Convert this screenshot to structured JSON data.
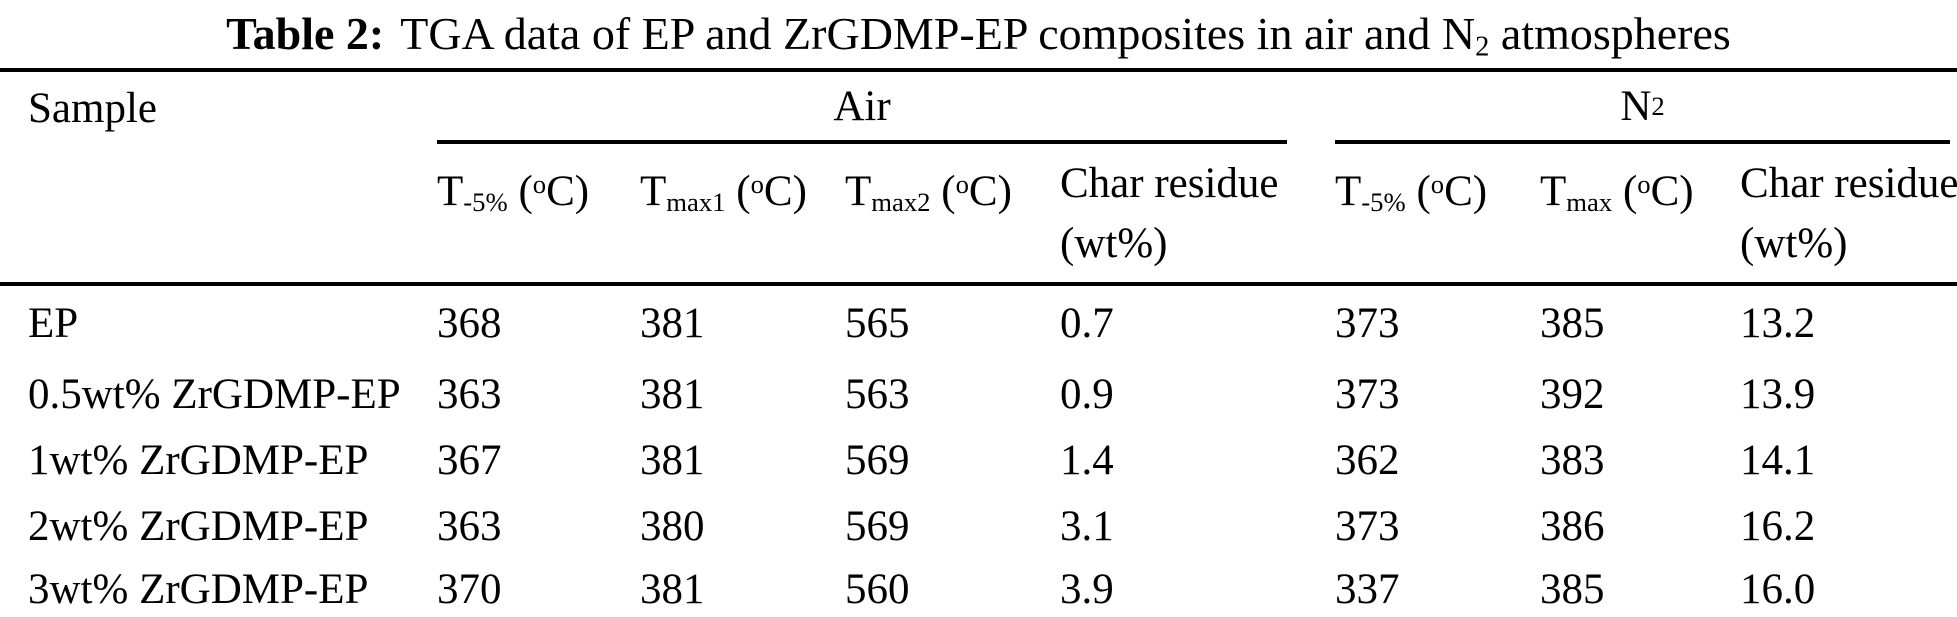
{
  "title": {
    "label": "Table 2:",
    "text": "TGA data of EP and ZrGDMP-EP composites in air and N~2~ atmospheres"
  },
  "colors": {
    "text": "#000000",
    "background": "#ffffff",
    "rule": "#000000"
  },
  "table": {
    "sample_header": "Sample",
    "groups": [
      {
        "label": "Air",
        "columns": [
          "T~-5%~ (^o^C)",
          "T~max1~ (^o^C)",
          "T~max2~ (^o^C)",
          "Char residue\n(wt%)"
        ]
      },
      {
        "label": "N~2~",
        "columns": [
          "T~-5%~ (^o^C)",
          "T~max~ (^o^C)",
          "Char residue\n(wt%)"
        ]
      }
    ],
    "rows": [
      {
        "sample": "EP",
        "values": [
          "368",
          "381",
          "565",
          "0.7",
          "373",
          "385",
          "13.2"
        ]
      },
      {
        "sample": "0.5wt% ZrGDMP-EP",
        "values": [
          "363",
          "381",
          "563",
          "0.9",
          "373",
          "392",
          "13.9"
        ]
      },
      {
        "sample": "1wt% ZrGDMP-EP",
        "values": [
          "367",
          "381",
          "569",
          "1.4",
          "362",
          "383",
          "14.1"
        ]
      },
      {
        "sample": "2wt% ZrGDMP-EP",
        "values": [
          "363",
          "380",
          "569",
          "3.1",
          "373",
          "386",
          "16.2"
        ]
      },
      {
        "sample": "3wt% ZrGDMP-EP",
        "values": [
          "370",
          "381",
          "560",
          "3.9",
          "337",
          "385",
          "16.0"
        ]
      }
    ]
  }
}
